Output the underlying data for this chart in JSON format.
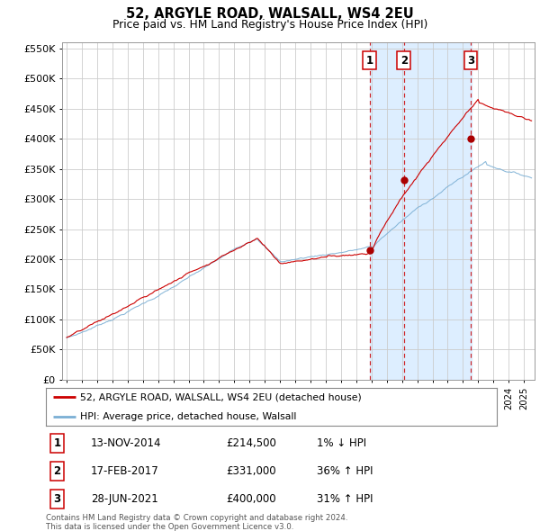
{
  "title": "52, ARGYLE ROAD, WALSALL, WS4 2EU",
  "subtitle": "Price paid vs. HM Land Registry's House Price Index (HPI)",
  "background_color": "#ffffff",
  "plot_bg_color": "#ffffff",
  "grid_color": "#cccccc",
  "shade_color": "#ddeeff",
  "red_line_color": "#cc0000",
  "blue_line_color": "#7bafd4",
  "sale_marker_color": "#aa0000",
  "dashed_line_color": "#cc0000",
  "legend_entries": [
    "52, ARGYLE ROAD, WALSALL, WS4 2EU (detached house)",
    "HPI: Average price, detached house, Walsall"
  ],
  "sale_points": [
    {
      "label": "1",
      "date": "13-NOV-2014",
      "price": 214500,
      "pct": "1% ↓ HPI"
    },
    {
      "label": "2",
      "date": "17-FEB-2017",
      "price": 331000,
      "pct": "36% ↑ HPI"
    },
    {
      "label": "3",
      "date": "28-JUN-2021",
      "price": 400000,
      "pct": "31% ↑ HPI"
    }
  ],
  "footer_line1": "Contains HM Land Registry data © Crown copyright and database right 2024.",
  "footer_line2": "This data is licensed under the Open Government Licence v3.0.",
  "ylim": [
    0,
    560000
  ],
  "yticks": [
    0,
    50000,
    100000,
    150000,
    200000,
    250000,
    300000,
    350000,
    400000,
    450000,
    500000,
    550000
  ],
  "ytick_labels": [
    "£0",
    "£50K",
    "£100K",
    "£150K",
    "£200K",
    "£250K",
    "£300K",
    "£350K",
    "£400K",
    "£450K",
    "£500K",
    "£550K"
  ],
  "xstart": 1994.7,
  "xend": 2025.7,
  "sale1_x": 2014.87,
  "sale2_x": 2017.12,
  "sale3_x": 2021.5
}
